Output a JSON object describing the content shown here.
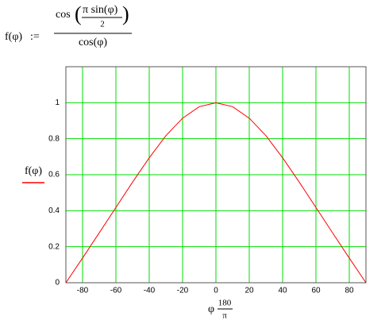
{
  "formula": {
    "lhs": "f(φ)",
    "assign": ":=",
    "numerator_fn": "cos",
    "numerator_top": "π  sin(φ)",
    "numerator_bottom": "2",
    "denominator": "cos(φ)"
  },
  "chart_data": {
    "type": "line",
    "y_label": "f(φ)",
    "x_label": {
      "var": "φ",
      "num": "180",
      "den": "π"
    },
    "x": [
      -90,
      -80,
      -70,
      -60,
      -50,
      -40,
      -30,
      -20,
      -10,
      0,
      10,
      20,
      30,
      40,
      50,
      60,
      70,
      80,
      90
    ],
    "series": [
      {
        "name": "f(φ)",
        "color": "#ff0000",
        "values": [
          0,
          0.137,
          0.277,
          0.418,
          0.559,
          0.694,
          0.817,
          0.914,
          0.978,
          1,
          0.978,
          0.914,
          0.817,
          0.694,
          0.559,
          0.418,
          0.277,
          0.137,
          0
        ]
      }
    ],
    "xlim": [
      -90,
      90
    ],
    "ylim": [
      0,
      1.2
    ],
    "xticks": [
      -80,
      -60,
      -40,
      -20,
      0,
      20,
      40,
      60,
      80
    ],
    "yticks": [
      0,
      0.2,
      0.4,
      0.6,
      0.8,
      1
    ],
    "grid": true,
    "grid_color": "#00dd00"
  }
}
